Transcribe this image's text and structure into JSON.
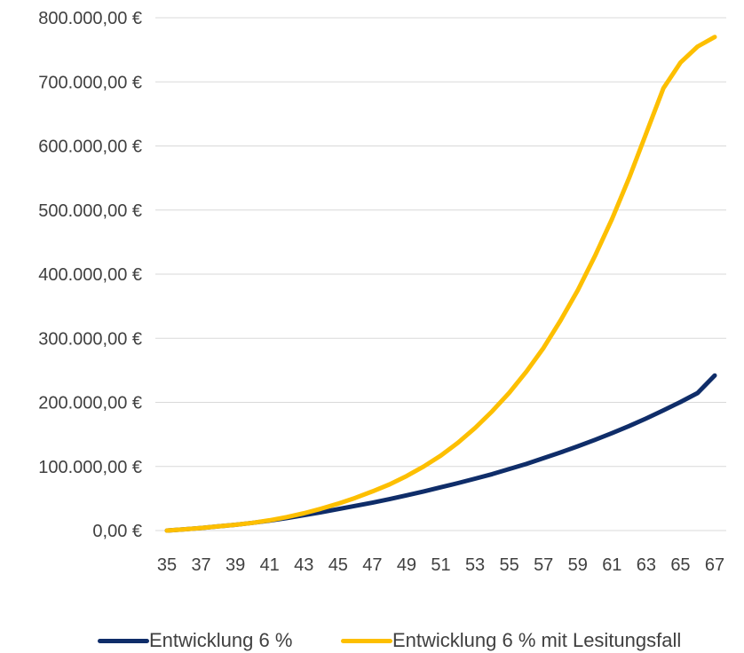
{
  "chart_data": {
    "type": "line",
    "title": "",
    "xlabel": "",
    "ylabel": "",
    "x": [
      35,
      36,
      37,
      38,
      39,
      40,
      41,
      42,
      43,
      44,
      45,
      46,
      47,
      48,
      49,
      50,
      51,
      52,
      53,
      54,
      55,
      56,
      57,
      58,
      59,
      60,
      61,
      62,
      63,
      64,
      65,
      66,
      67
    ],
    "x_tick_labels": [
      "35",
      "37",
      "39",
      "41",
      "43",
      "45",
      "47",
      "49",
      "51",
      "53",
      "55",
      "57",
      "59",
      "61",
      "63",
      "65",
      "67"
    ],
    "y_tick_labels": [
      "0,00 €",
      "100.000,00 €",
      "200.000,00 €",
      "300.000,00 €",
      "400.000,00 €",
      "500.000,00 €",
      "600.000,00 €",
      "700.000,00 €",
      "800.000,00 €"
    ],
    "ylim": [
      0,
      800000
    ],
    "grid": true,
    "legend": "bottom",
    "series": [
      {
        "name": "Entwicklung 6 %",
        "color": "#0f2d69",
        "values": [
          0,
          2000,
          4000,
          6500,
          9000,
          12000,
          15500,
          19500,
          24000,
          28500,
          33500,
          38500,
          43500,
          49000,
          55000,
          61000,
          67500,
          74000,
          81000,
          88000,
          96000,
          104000,
          113000,
          122000,
          131500,
          141500,
          152000,
          163000,
          175000,
          187500,
          200500,
          214500,
          242000
        ]
      },
      {
        "name": "Entwicklung 6 % mit Lesitungsfall",
        "color": "#fdbf00",
        "values": [
          0,
          2000,
          4000,
          6500,
          9000,
          12000,
          16000,
          21000,
          27000,
          34000,
          42000,
          51000,
          61000,
          72000,
          85000,
          100000,
          117000,
          137000,
          160000,
          186000,
          215000,
          248000,
          285000,
          328000,
          375000,
          428000,
          486000,
          550000,
          620000,
          690000,
          730000,
          755000,
          770000
        ]
      }
    ]
  }
}
